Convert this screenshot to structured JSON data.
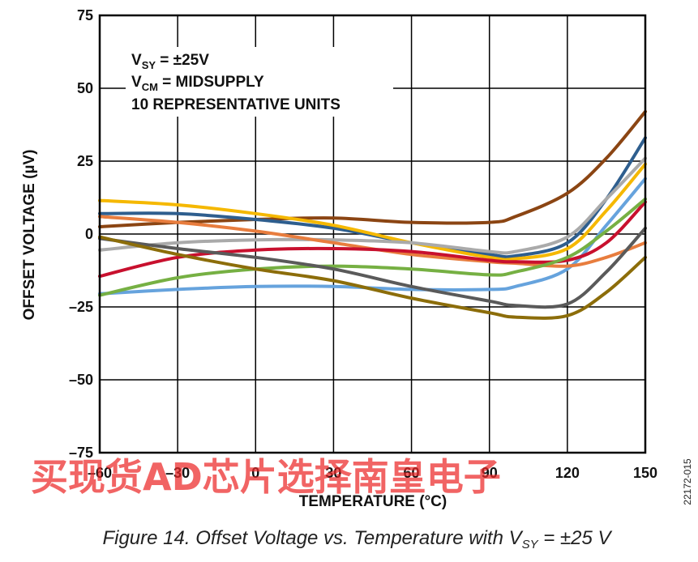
{
  "chart_data": {
    "type": "line",
    "xlabel": "TEMPERATURE (°C)",
    "ylabel": "OFFSET VOLTAGE (µV)",
    "xlim": [
      -60,
      150
    ],
    "ylim": [
      -75,
      75
    ],
    "x_ticks": [
      -60,
      -30,
      0,
      30,
      60,
      90,
      120,
      150
    ],
    "y_ticks": [
      75,
      50,
      25,
      0,
      -25,
      -50,
      -75
    ],
    "x_tick_labels": [
      "–60",
      "–30",
      "0",
      "30",
      "60",
      "90",
      "120",
      "150"
    ],
    "y_tick_labels": [
      "75",
      "50",
      "25",
      "0",
      "–25",
      "–50",
      "–75"
    ],
    "grid": true,
    "annotation": {
      "line1": {
        "main": "V",
        "sub": "SY",
        "rest": " = ±25V"
      },
      "line2": {
        "main": "V",
        "sub": "CM",
        "rest": " = MIDSUPPLY"
      },
      "line3": "10 REPRESENTATIVE UNITS"
    },
    "x": [
      -60,
      -30,
      0,
      30,
      60,
      90,
      100,
      120,
      135,
      150
    ],
    "series": [
      {
        "color": "#8B4513",
        "values": [
          2.5,
          4,
          5,
          5.5,
          4,
          4,
          6,
          14,
          26,
          42
        ]
      },
      {
        "color": "#2E5E8E",
        "values": [
          7,
          7,
          5,
          2,
          -3,
          -7,
          -7.5,
          -3,
          12,
          33
        ]
      },
      {
        "color": "#F5B800",
        "values": [
          11.5,
          10,
          7,
          3,
          -3,
          -8,
          -8.5,
          -5,
          8,
          24
        ]
      },
      {
        "color": "#AAAAAA",
        "values": [
          -5.5,
          -3,
          -2,
          -2,
          -3,
          -6,
          -6,
          -1,
          12,
          26
        ]
      },
      {
        "color": "#66A3DD",
        "values": [
          -20.5,
          -19,
          -18,
          -18,
          -19,
          -19,
          -18,
          -12,
          3,
          19
        ]
      },
      {
        "color": "#E87D3E",
        "values": [
          6,
          4,
          1,
          -3,
          -7,
          -9.5,
          -10,
          -11,
          -8,
          -3
        ]
      },
      {
        "color": "#C8102E",
        "values": [
          -14.5,
          -8,
          -5.5,
          -5,
          -6,
          -9,
          -9.5,
          -9,
          -3,
          11
        ]
      },
      {
        "color": "#76B043",
        "values": [
          -21,
          -15,
          -12,
          -11,
          -12,
          -14,
          -13,
          -8,
          1,
          12
        ]
      },
      {
        "color": "#5A5A5A",
        "values": [
          -1.5,
          -5,
          -8,
          -12,
          -18,
          -23,
          -24.5,
          -24,
          -13,
          2
        ]
      },
      {
        "color": "#8C6D0A",
        "values": [
          -1,
          -7,
          -12,
          -16,
          -22,
          -27,
          -28.5,
          -28,
          -20,
          -8
        ]
      }
    ]
  },
  "watermark": "买现货AD芯片选择南皇电子",
  "figure_id": "22172-015",
  "caption": {
    "prefix": "Figure 14. Offset Voltage vs. Temperature with V",
    "sub": "SY",
    "suffix": " = ±25 V"
  }
}
